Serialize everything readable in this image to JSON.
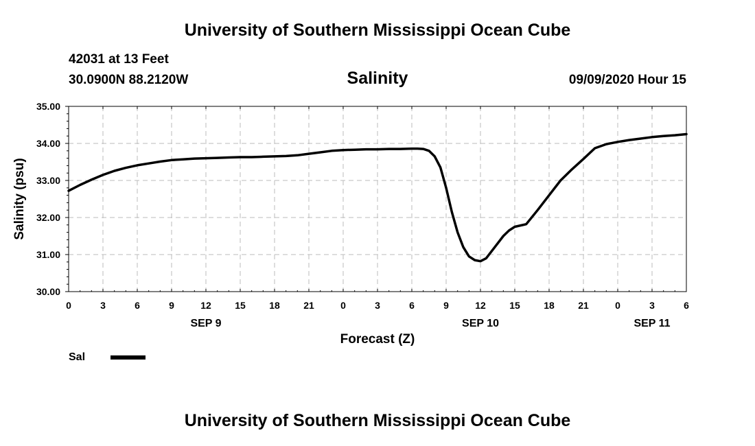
{
  "header": {
    "title": "University of Southern Mississippi Ocean Cube",
    "station": "42031 at 13 Feet",
    "coordinates": "30.0900N 88.2120W",
    "variable": "Salinity",
    "datetime": "09/09/2020 Hour 15"
  },
  "footer": {
    "title": "University of Southern Mississippi Ocean Cube"
  },
  "colors": {
    "line": "#000000",
    "grid": "#bbbbbb",
    "background": "#ffffff"
  },
  "chart_data": {
    "type": "line",
    "title": "Salinity",
    "xlabel": "Forecast (Z)",
    "ylabel": "Salinity (psu)",
    "xlim": [
      0,
      54
    ],
    "ylim": [
      30.0,
      35.0
    ],
    "grid": true,
    "x_tick_values": [
      0,
      3,
      6,
      9,
      12,
      15,
      18,
      21,
      24,
      27,
      30,
      33,
      36,
      39,
      42,
      45,
      48,
      51,
      54
    ],
    "x_tick_labels": [
      "0",
      "3",
      "6",
      "9",
      "12",
      "15",
      "18",
      "21",
      "0",
      "3",
      "6",
      "9",
      "12",
      "15",
      "18",
      "21",
      "0",
      "3",
      "6"
    ],
    "y_tick_values": [
      30,
      31,
      32,
      33,
      34,
      35
    ],
    "y_tick_labels": [
      "30.00",
      "31.00",
      "32.00",
      "33.00",
      "34.00",
      "35.00"
    ],
    "date_labels": [
      {
        "x": 12,
        "label": "SEP 9"
      },
      {
        "x": 36,
        "label": "SEP 10"
      },
      {
        "x": 51,
        "label": "SEP 11"
      }
    ],
    "legend": {
      "position": "bottom-left",
      "label": "Sal"
    },
    "series": [
      {
        "name": "Sal",
        "x": [
          0,
          1,
          2,
          3,
          4,
          5,
          6,
          7,
          8,
          9,
          10,
          11,
          12,
          13,
          14,
          15,
          16,
          17,
          18,
          19,
          20,
          21,
          22,
          23,
          24,
          25,
          26,
          27,
          28,
          29,
          30,
          30.5,
          31,
          31.5,
          32,
          32.5,
          33,
          33.5,
          34,
          34.5,
          35,
          35.5,
          36,
          36.5,
          37,
          37.5,
          38,
          38.5,
          39,
          40,
          41,
          42,
          43,
          44,
          45,
          46,
          47,
          48,
          49,
          50,
          51,
          52,
          53,
          54
        ],
        "values": [
          32.72,
          32.88,
          33.02,
          33.15,
          33.26,
          33.34,
          33.41,
          33.46,
          33.51,
          33.55,
          33.57,
          33.59,
          33.6,
          33.61,
          33.62,
          33.63,
          33.63,
          33.64,
          33.65,
          33.66,
          33.68,
          33.72,
          33.76,
          33.8,
          33.82,
          33.83,
          33.84,
          33.84,
          33.85,
          33.85,
          33.86,
          33.86,
          33.85,
          33.8,
          33.65,
          33.35,
          32.8,
          32.15,
          31.6,
          31.2,
          30.95,
          30.85,
          30.82,
          30.9,
          31.1,
          31.3,
          31.5,
          31.65,
          31.75,
          31.82,
          32.2,
          32.6,
          33.0,
          33.3,
          33.58,
          33.87,
          33.98,
          34.04,
          34.09,
          34.13,
          34.17,
          34.2,
          34.22,
          34.25
        ]
      }
    ]
  }
}
